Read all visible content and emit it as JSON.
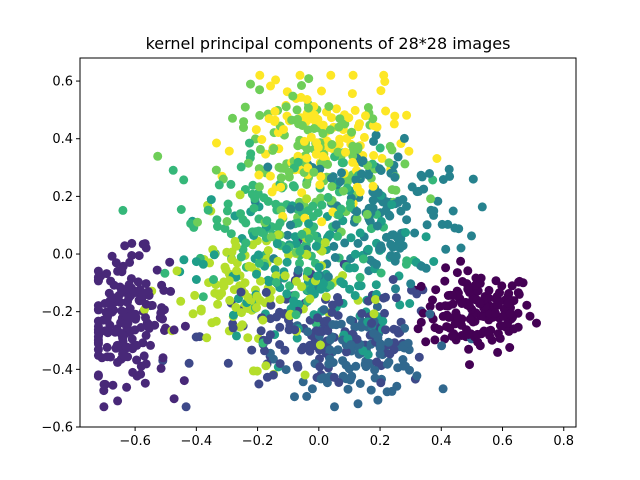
{
  "chart_data": {
    "type": "scatter",
    "title": "kernel principal components of 28*28 images",
    "xlabel": "",
    "ylabel": "",
    "xlim": [
      -0.78,
      0.84
    ],
    "ylim": [
      -0.6,
      0.68
    ],
    "xticks": [
      -0.6,
      -0.4,
      -0.2,
      0.0,
      0.2,
      0.4,
      0.6,
      0.8
    ],
    "xtick_labels": [
      "−0.6",
      "−0.4",
      "−0.2",
      "0.0",
      "0.2",
      "0.4",
      "0.6",
      "0.8"
    ],
    "yticks": [
      -0.6,
      -0.4,
      -0.2,
      0.0,
      0.2,
      0.4,
      0.6
    ],
    "ytick_labels": [
      "−0.6",
      "−0.4",
      "−0.2",
      "0.0",
      "0.2",
      "0.4",
      "0.6"
    ],
    "grid": false,
    "legend": "none",
    "colormap": "viridis",
    "clusters": [
      {
        "color": "#440154",
        "center": [
          0.52,
          -0.2
        ],
        "spread": [
          0.09,
          0.07
        ],
        "count": 160
      },
      {
        "color": "#482878",
        "center": [
          -0.63,
          -0.22
        ],
        "spread": [
          0.07,
          0.11
        ],
        "count": 180
      },
      {
        "color": "#3e4989",
        "center": [
          0.02,
          -0.28
        ],
        "spread": [
          0.2,
          0.1
        ],
        "count": 140
      },
      {
        "color": "#31688e",
        "center": [
          0.12,
          -0.35
        ],
        "spread": [
          0.12,
          0.07
        ],
        "count": 110
      },
      {
        "color": "#26828e",
        "center": [
          0.2,
          0.15
        ],
        "spread": [
          0.14,
          0.14
        ],
        "count": 150
      },
      {
        "color": "#1f9e89",
        "center": [
          -0.05,
          -0.08
        ],
        "spread": [
          0.18,
          0.14
        ],
        "count": 130
      },
      {
        "color": "#35b779",
        "center": [
          -0.1,
          0.1
        ],
        "spread": [
          0.18,
          0.13
        ],
        "count": 140
      },
      {
        "color": "#6ece58",
        "center": [
          0.0,
          0.32
        ],
        "spread": [
          0.14,
          0.12
        ],
        "count": 140
      },
      {
        "color": "#b5de2b",
        "center": [
          -0.2,
          -0.12
        ],
        "spread": [
          0.14,
          0.12
        ],
        "count": 130
      },
      {
        "color": "#fde725",
        "center": [
          0.0,
          0.38
        ],
        "spread": [
          0.13,
          0.12
        ],
        "count": 120
      }
    ]
  }
}
